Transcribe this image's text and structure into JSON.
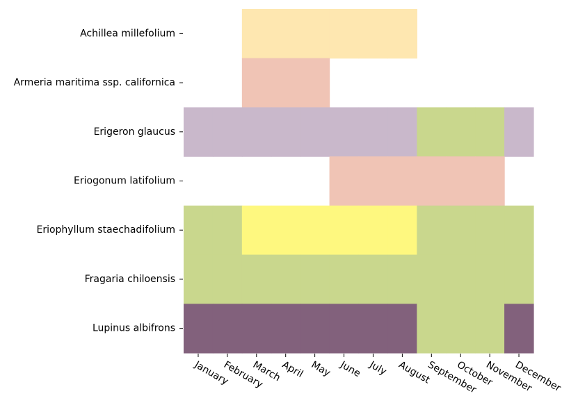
{
  "chart_data": {
    "type": "heatmap",
    "x_categories": [
      "January",
      "February",
      "March",
      "April",
      "May",
      "June",
      "July",
      "August",
      "September",
      "October",
      "November",
      "December"
    ],
    "y_categories": [
      "Achillea millefolium",
      "Armeria maritima ssp. californica",
      "Erigeron glaucus",
      "Eriogonum latifolium",
      "Eriophyllum staechadifolium",
      "Fragaria chiloensis",
      "Lupinus albifrons"
    ],
    "cells": [
      [
        null,
        null,
        "#fee7b0",
        "#fee7b0",
        "#fee7b0",
        "#fee7b0",
        "#fee7b0",
        "#fee7b0",
        null,
        null,
        null,
        null
      ],
      [
        null,
        null,
        "#f0c4b5",
        "#f0c4b5",
        "#f0c4b5",
        null,
        null,
        null,
        null,
        null,
        null,
        null
      ],
      [
        "#c9b8cb",
        "#c9b8cb",
        "#c9b8cb",
        "#c9b8cb",
        "#c9b8cb",
        "#c9b8cb",
        "#c9b8cb",
        "#c9b8cb",
        "#c9d78d",
        "#c9d78d",
        "#c9d78d",
        "#c9b8cb"
      ],
      [
        null,
        null,
        null,
        null,
        null,
        "#f0c4b5",
        "#f0c4b5",
        "#f0c4b5",
        "#f0c4b5",
        "#f0c4b5",
        "#f0c4b5",
        null
      ],
      [
        "#c9d78d",
        "#c9d78d",
        "#fef87f",
        "#fef87f",
        "#fef87f",
        "#fef87f",
        "#fef87f",
        "#fef87f",
        "#c9d78d",
        "#c9d78d",
        "#c9d78d",
        "#c9d78d"
      ],
      [
        "#c9d78d",
        "#c9d78d",
        "#c9d78d",
        "#c9d78d",
        "#c9d78d",
        "#c9d78d",
        "#c9d78d",
        "#c9d78d",
        "#c9d78d",
        "#c9d78d",
        "#c9d78d",
        "#c9d78d"
      ],
      [
        "#82617c",
        "#82617c",
        "#82617c",
        "#82617c",
        "#82617c",
        "#82617c",
        "#82617c",
        "#82617c",
        "#c9d78d",
        "#c9d78d",
        "#c9d78d",
        "#82617c"
      ]
    ],
    "grid": false,
    "legend": "none"
  }
}
